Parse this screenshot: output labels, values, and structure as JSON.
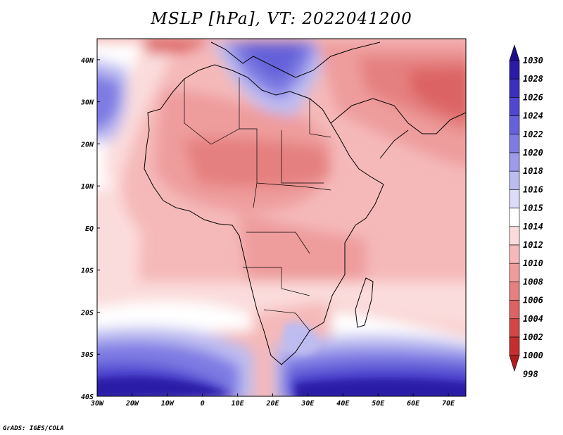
{
  "title": "MSLP [hPa], VT: 2022041200",
  "credit": "GrADS: IGES/COLA",
  "map": {
    "lon_range": [
      -30,
      75
    ],
    "lat_range": [
      -40,
      45
    ],
    "lon_ticks": [
      {
        "lon": -30,
        "label": "30W"
      },
      {
        "lon": -20,
        "label": "20W"
      },
      {
        "lon": -10,
        "label": "10W"
      },
      {
        "lon": 0,
        "label": "0"
      },
      {
        "lon": 10,
        "label": "10E"
      },
      {
        "lon": 20,
        "label": "20E"
      },
      {
        "lon": 30,
        "label": "30E"
      },
      {
        "lon": 40,
        "label": "40E"
      },
      {
        "lon": 50,
        "label": "50E"
      },
      {
        "lon": 60,
        "label": "60E"
      },
      {
        "lon": 70,
        "label": "70E"
      }
    ],
    "lat_ticks": [
      {
        "lat": 40,
        "label": "40N"
      },
      {
        "lat": 30,
        "label": "30N"
      },
      {
        "lat": 20,
        "label": "20N"
      },
      {
        "lat": 10,
        "label": "10N"
      },
      {
        "lat": 0,
        "label": "EQ"
      },
      {
        "lat": -10,
        "label": "10S"
      },
      {
        "lat": -20,
        "label": "20S"
      },
      {
        "lat": -30,
        "label": "30S"
      },
      {
        "lat": -40,
        "label": "40S"
      }
    ]
  },
  "colorbar": {
    "levels": [
      {
        "label": "1030",
        "color": "#1b0d8a"
      },
      {
        "label": "1028",
        "color": "#2b1aa6"
      },
      {
        "label": "1026",
        "color": "#3b30bd"
      },
      {
        "label": "1024",
        "color": "#4f47cf"
      },
      {
        "label": "1022",
        "color": "#6461d9"
      },
      {
        "label": "1020",
        "color": "#7e7ce3"
      },
      {
        "label": "1018",
        "color": "#9d9bea"
      },
      {
        "label": "1016",
        "color": "#bdbcf1"
      },
      {
        "label": "1015",
        "color": "#dddcf8"
      },
      {
        "label": "1014",
        "color": "#ffffff"
      },
      {
        "label": "1012",
        "color": "#fbdcdc"
      },
      {
        "label": "1010",
        "color": "#f5b9b9"
      },
      {
        "label": "1008",
        "color": "#ee9c9c"
      },
      {
        "label": "1006",
        "color": "#e58080"
      },
      {
        "label": "1004",
        "color": "#dc6363"
      },
      {
        "label": "1002",
        "color": "#d24646"
      },
      {
        "label": "1000",
        "color": "#c42e2e"
      },
      {
        "label": "998",
        "color": "#b01c1c"
      }
    ]
  }
}
